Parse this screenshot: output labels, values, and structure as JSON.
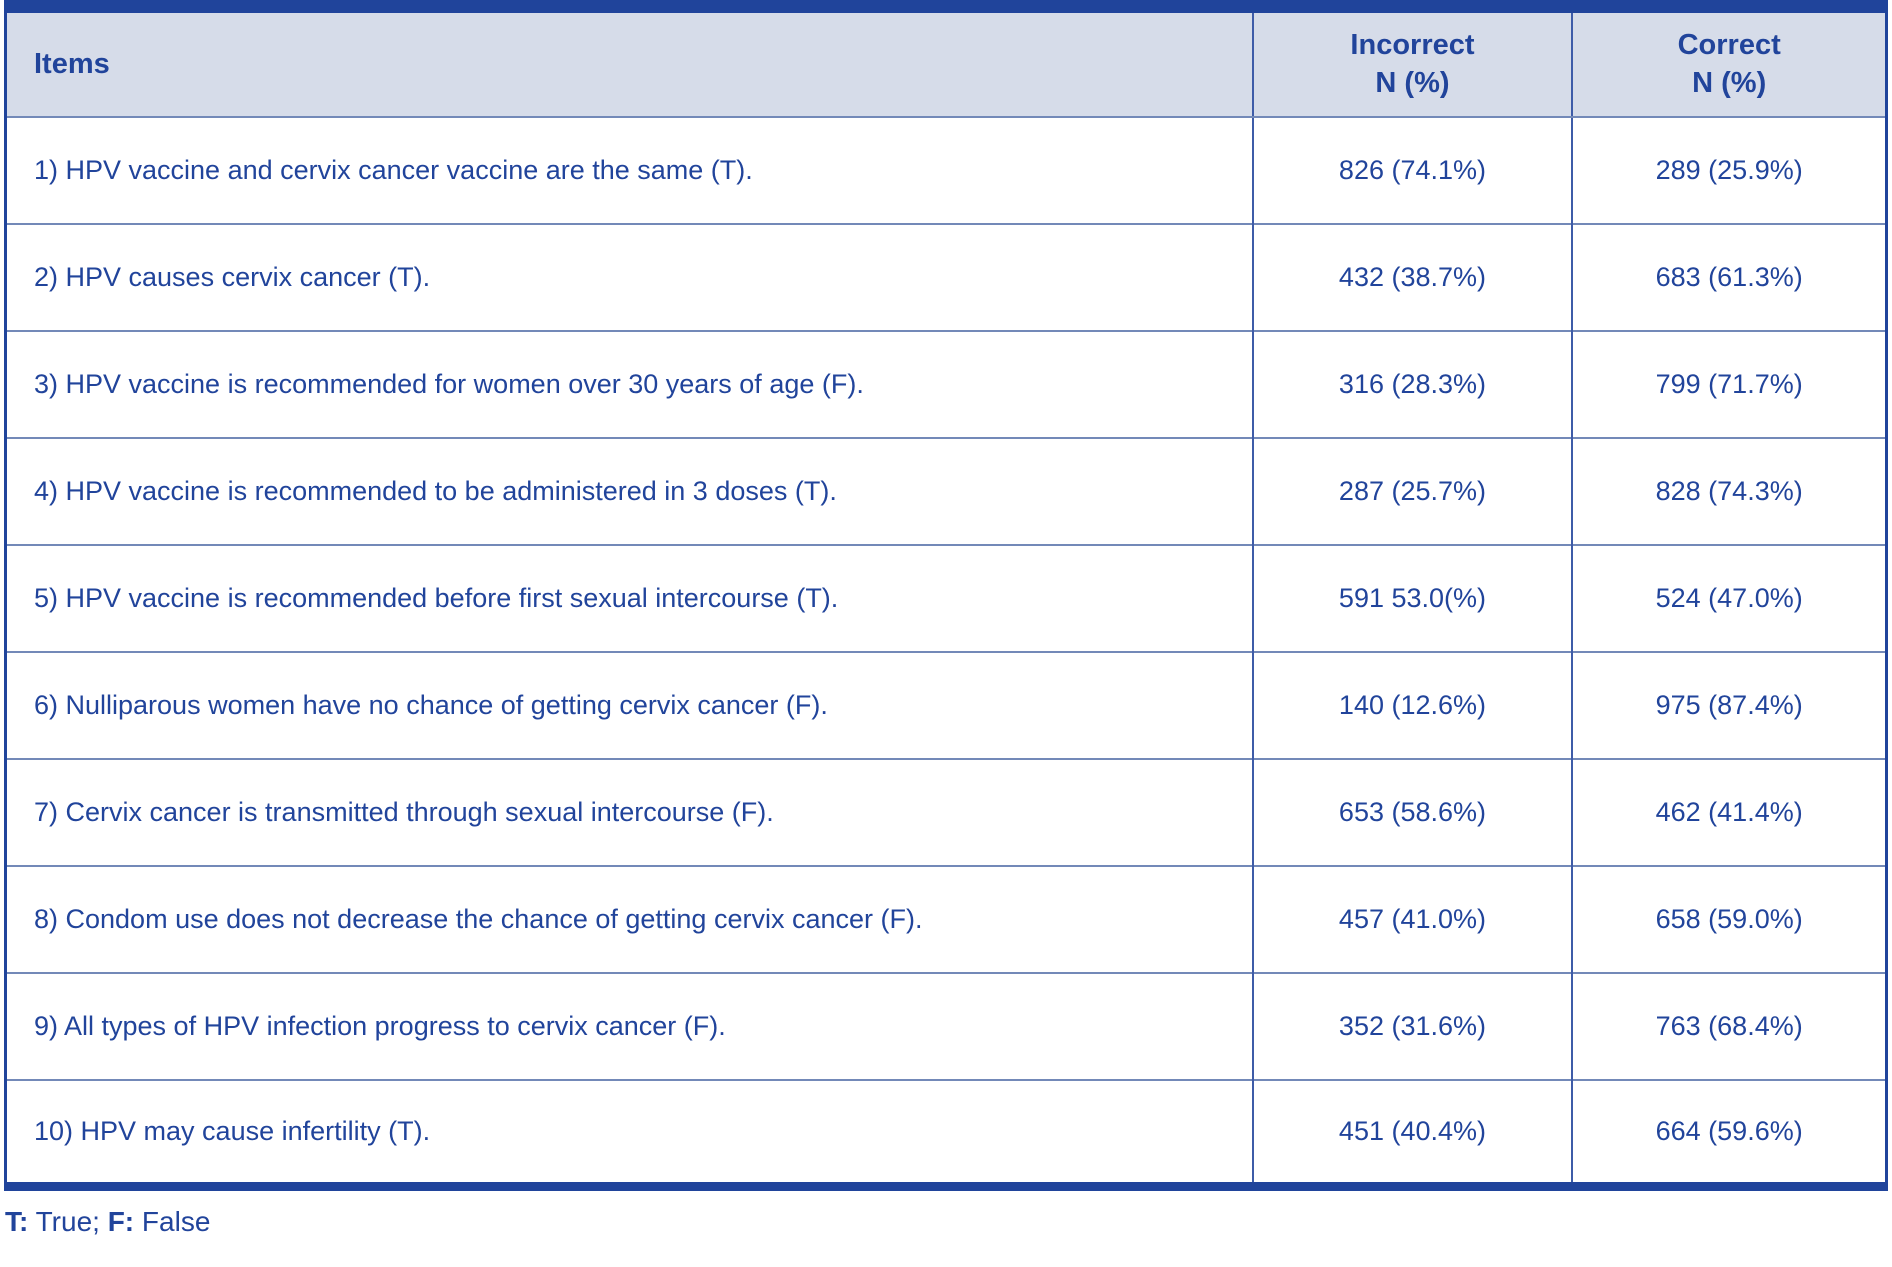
{
  "colors": {
    "dark_blue_border": "#20449B",
    "header_background": "#D6DCE9",
    "text_blue": "#21449B",
    "row_divider": "#7389B8",
    "column_divider": "#3E5CA8"
  },
  "table": {
    "headers": {
      "items": "Items",
      "incorrect_line1": "Incorrect",
      "incorrect_line2": "N (%)",
      "correct_line1": "Correct",
      "correct_line2": "N (%)"
    },
    "rows": [
      {
        "item": "1) HPV vaccine and cervix cancer vaccine are the same (T).",
        "incorrect": "826 (74.1%)",
        "correct": "289 (25.9%)"
      },
      {
        "item": "2) HPV causes cervix cancer (T).",
        "incorrect": "432 (38.7%)",
        "correct": "683 (61.3%)"
      },
      {
        "item": "3) HPV vaccine is recommended for women over 30 years of age (F).",
        "incorrect": "316 (28.3%)",
        "correct": "799 (71.7%)"
      },
      {
        "item": "4) HPV vaccine is recommended to be administered in 3 doses (T).",
        "incorrect": "287 (25.7%)",
        "correct": "828 (74.3%)"
      },
      {
        "item": "5) HPV vaccine is recommended before first sexual intercourse (T).",
        "incorrect": "591 53.0(%)",
        "correct": "524 (47.0%)"
      },
      {
        "item": "6) Nulliparous women have no chance of getting cervix cancer (F).",
        "incorrect": "140 (12.6%)",
        "correct": "975 (87.4%)"
      },
      {
        "item": "7) Cervix cancer is transmitted through sexual intercourse (F).",
        "incorrect": "653 (58.6%)",
        "correct": "462 (41.4%)"
      },
      {
        "item": "8) Condom use does not decrease the chance of getting cervix cancer (F).",
        "incorrect": "457 (41.0%)",
        "correct": "658 (59.0%)"
      },
      {
        "item": "9) All types of HPV infection progress to cervix cancer (F).",
        "incorrect": "352 (31.6%)",
        "correct": "763 (68.4%)"
      },
      {
        "item": "10) HPV may cause infertility (T).",
        "incorrect": "451 (40.4%)",
        "correct": "664 (59.6%)"
      }
    ]
  },
  "footnote": {
    "t_label": "T:",
    "t_value": " True; ",
    "f_label": "F:",
    "f_value": " False"
  },
  "chart_data": {
    "type": "table",
    "columns": [
      "Items",
      "Incorrect N (%)",
      "Correct N (%)"
    ],
    "items": [
      "1) HPV vaccine and cervix cancer vaccine are the same (T).",
      "2) HPV causes cervix cancer (T).",
      "3) HPV vaccine is recommended for women over 30 years of age (F).",
      "4) HPV vaccine is recommended to be administered in 3 doses (T).",
      "5) HPV vaccine is recommended before first sexual intercourse (T).",
      "6) Nulliparous women have no chance of getting cervix cancer (F).",
      "7) Cervix cancer is transmitted through sexual intercourse (F).",
      "8) Condom use does not decrease the chance of getting cervix cancer (F).",
      "9) All types of HPV infection progress to cervix cancer (F).",
      "10) HPV may cause infertility (T)."
    ],
    "incorrect_n": [
      826,
      432,
      316,
      287,
      591,
      140,
      653,
      457,
      352,
      451
    ],
    "incorrect_pct": [
      74.1,
      38.7,
      28.3,
      25.7,
      53.0,
      12.6,
      58.6,
      41.0,
      31.6,
      40.4
    ],
    "correct_n": [
      289,
      683,
      799,
      828,
      524,
      975,
      462,
      658,
      763,
      664
    ],
    "correct_pct": [
      25.9,
      61.3,
      71.7,
      74.3,
      47.0,
      87.4,
      41.4,
      59.0,
      68.4,
      59.6
    ],
    "footnote": "T: True; F: False"
  }
}
